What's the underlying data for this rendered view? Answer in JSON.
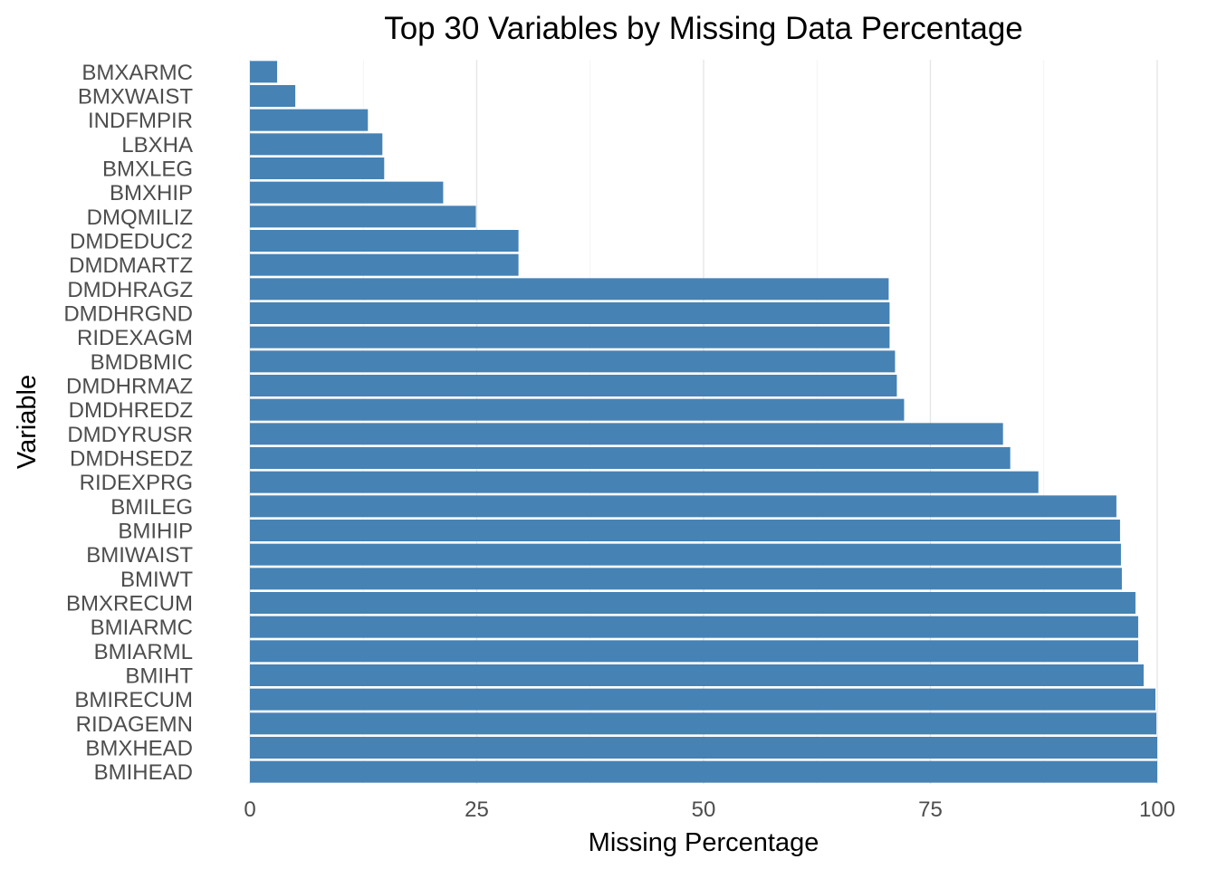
{
  "chart_data": {
    "type": "bar",
    "orientation": "horizontal",
    "title": "Top 30 Variables by Missing Data Percentage",
    "xlabel": "Missing Percentage",
    "ylabel": "Variable",
    "xlim": [
      0,
      100
    ],
    "xticks": [
      "0",
      "25",
      "50",
      "75",
      "100"
    ],
    "grid": true,
    "legend": "none",
    "bar_color": "#4682b4",
    "categories": [
      "BMXARMC",
      "BMXWAIST",
      "INDFMPIR",
      "LBXHA",
      "BMXLEG",
      "BMXHIP",
      "DMQMILIZ",
      "DMDEDUC2",
      "DMDMARTZ",
      "DMDHRAGZ",
      "DMDHRGND",
      "RIDEXAGM",
      "BMDBMIC",
      "DMDHRMAZ",
      "DMDHREDZ",
      "DMDYRUSR",
      "DMDHSEDZ",
      "RIDEXPRG",
      "BMILEG",
      "BMIHIP",
      "BMIWAIST",
      "BMIWT",
      "BMXRECUM",
      "BMIARMC",
      "BMIARML",
      "BMIHT",
      "BMIRECUM",
      "RIDAGEMN",
      "BMXHEAD",
      "BMIHEAD"
    ],
    "values": [
      3.0,
      5.0,
      13.0,
      14.6,
      14.8,
      21.3,
      24.9,
      29.6,
      29.6,
      70.4,
      70.5,
      70.5,
      71.1,
      71.3,
      72.1,
      83.0,
      83.8,
      86.9,
      95.5,
      95.9,
      96.0,
      96.1,
      97.6,
      97.9,
      97.9,
      98.5,
      99.8,
      99.9,
      100.0,
      100.0
    ]
  }
}
